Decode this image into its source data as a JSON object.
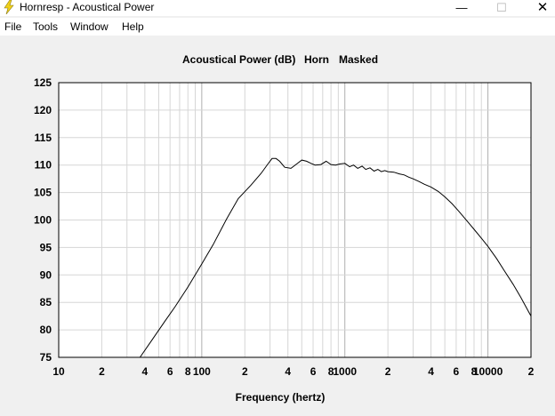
{
  "window": {
    "title": "Hornresp - Acoustical Power",
    "minimize_glyph": "—",
    "maximize_glyph": "☐",
    "close_glyph": "✕",
    "icon": "lightning-bolt-icon"
  },
  "menu": {
    "items": [
      {
        "label": "File"
      },
      {
        "label": "Tools"
      },
      {
        "label": "Window"
      },
      {
        "label": "Help"
      }
    ]
  },
  "colors": {
    "plot_background": "#ffffff",
    "grid_major": "#b0b0b0",
    "grid_minor": "#d6d6d6",
    "curve": "#000000",
    "window_background": "#f0f0f0"
  },
  "chart_data": {
    "type": "line",
    "title_parts": [
      "Acoustical Power (dB)",
      "Horn",
      "Masked"
    ],
    "xlabel": "Frequency (hertz)",
    "ylabel": "",
    "x_scale": "log",
    "xlim": [
      10,
      20000
    ],
    "ylim": [
      75,
      125
    ],
    "grid": true,
    "y_ticks": [
      75,
      80,
      85,
      90,
      95,
      100,
      105,
      110,
      115,
      120,
      125
    ],
    "x_tick_labels": [
      {
        "x": 10,
        "label": "10"
      },
      {
        "x": 20,
        "label": "2"
      },
      {
        "x": 40,
        "label": "4"
      },
      {
        "x": 60,
        "label": "6"
      },
      {
        "x": 80,
        "label": "8"
      },
      {
        "x": 100,
        "label": "100"
      },
      {
        "x": 200,
        "label": "2"
      },
      {
        "x": 400,
        "label": "4"
      },
      {
        "x": 600,
        "label": "6"
      },
      {
        "x": 800,
        "label": "8"
      },
      {
        "x": 1000,
        "label": "1000"
      },
      {
        "x": 2000,
        "label": "2"
      },
      {
        "x": 4000,
        "label": "4"
      },
      {
        "x": 6000,
        "label": "6"
      },
      {
        "x": 8000,
        "label": "8"
      },
      {
        "x": 10000,
        "label": "10000"
      },
      {
        "x": 20000,
        "label": "2"
      }
    ],
    "series": [
      {
        "x": [
          37,
          45,
          55,
          65,
          80,
          100,
          120,
          150,
          180,
          220,
          260,
          290,
          310,
          330,
          350,
          380,
          420,
          460,
          500,
          540,
          580,
          620,
          680,
          740,
          800,
          860,
          920,
          1000,
          1080,
          1150,
          1230,
          1320,
          1400,
          1500,
          1600,
          1700,
          1800,
          1900,
          2000,
          2200,
          2400,
          2600,
          2800,
          3000,
          3300,
          3600,
          4000,
          4500,
          5000,
          5600,
          6300,
          7000,
          8000,
          9000,
          10000,
          11500,
          13000,
          15000,
          17000,
          20000
        ],
        "y": [
          75,
          78.2,
          81.5,
          84.2,
          87.8,
          92,
          95.5,
          100.3,
          103.9,
          106.3,
          108.5,
          110.2,
          111.2,
          111.2,
          110.7,
          109.6,
          109.4,
          110.2,
          110.9,
          110.7,
          110.3,
          110,
          110.1,
          110.7,
          110.1,
          110,
          110.2,
          110.3,
          109.7,
          110,
          109.4,
          109.8,
          109.2,
          109.5,
          108.9,
          109.2,
          108.8,
          109,
          108.8,
          108.7,
          108.4,
          108.2,
          107.8,
          107.5,
          107,
          106.5,
          106,
          105.2,
          104.2,
          103,
          101.5,
          100.1,
          98.3,
          96.7,
          95.2,
          93,
          90.8,
          88.3,
          85.9,
          82.5
        ]
      }
    ]
  }
}
